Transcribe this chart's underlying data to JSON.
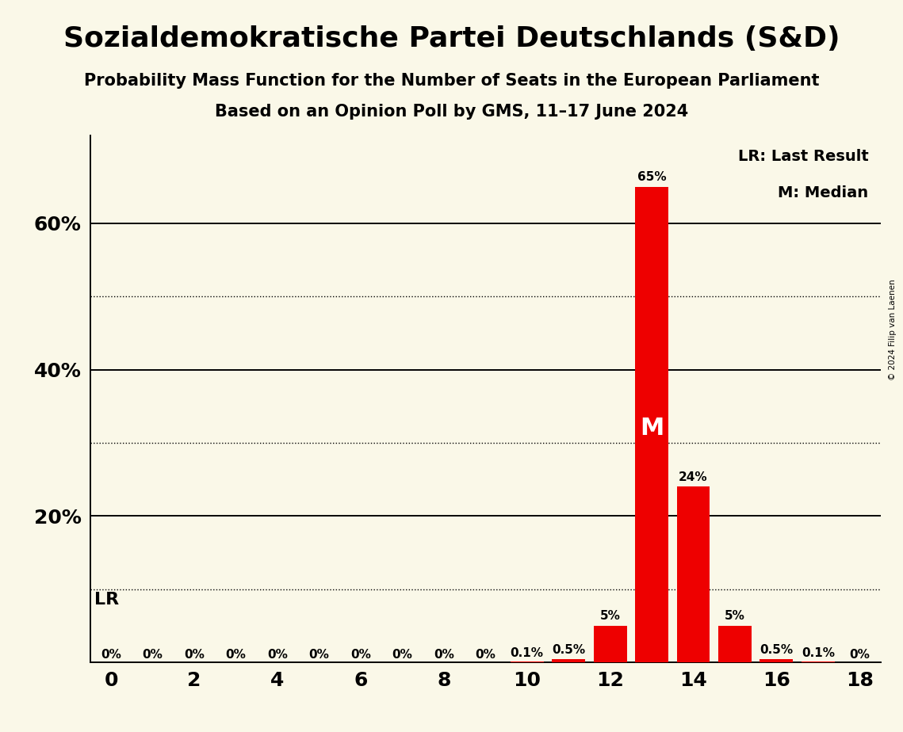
{
  "title": "Sozialdemokratische Partei Deutschlands (S&D)",
  "subtitle1": "Probability Mass Function for the Number of Seats in the European Parliament",
  "subtitle2": "Based on an Opinion Poll by GMS, 11–17 June 2024",
  "copyright": "© 2024 Filip van Laenen",
  "background_color": "#faf8e8",
  "bar_color": "#ee0000",
  "x_values": [
    0,
    1,
    2,
    3,
    4,
    5,
    6,
    7,
    8,
    9,
    10,
    11,
    12,
    13,
    14,
    15,
    16,
    17,
    18
  ],
  "y_values": [
    0,
    0,
    0,
    0,
    0,
    0,
    0,
    0,
    0,
    0,
    0.001,
    0.005,
    0.05,
    0.65,
    0.24,
    0.05,
    0.005,
    0.001,
    0
  ],
  "bar_labels": [
    "0%",
    "0%",
    "0%",
    "0%",
    "0%",
    "0%",
    "0%",
    "0%",
    "0%",
    "0%",
    "0.1%",
    "0.5%",
    "5%",
    "65%",
    "24%",
    "5%",
    "0.5%",
    "0.1%",
    "0%"
  ],
  "median": 13,
  "last_result_y": 0.1,
  "xlim": [
    -0.5,
    18.5
  ],
  "ylim": [
    0,
    0.72
  ],
  "solid_yticks": [
    0.0,
    0.2,
    0.4,
    0.6
  ],
  "dotted_yticks": [
    0.1,
    0.3,
    0.5
  ],
  "xticks": [
    0,
    2,
    4,
    6,
    8,
    10,
    12,
    14,
    16,
    18
  ],
  "legend_lr": "LR: Last Result",
  "legend_m": "M: Median",
  "lr_label": "LR",
  "m_label": "M",
  "bar_label_fontsize": 11,
  "ytick_fontsize": 18,
  "xtick_fontsize": 18
}
